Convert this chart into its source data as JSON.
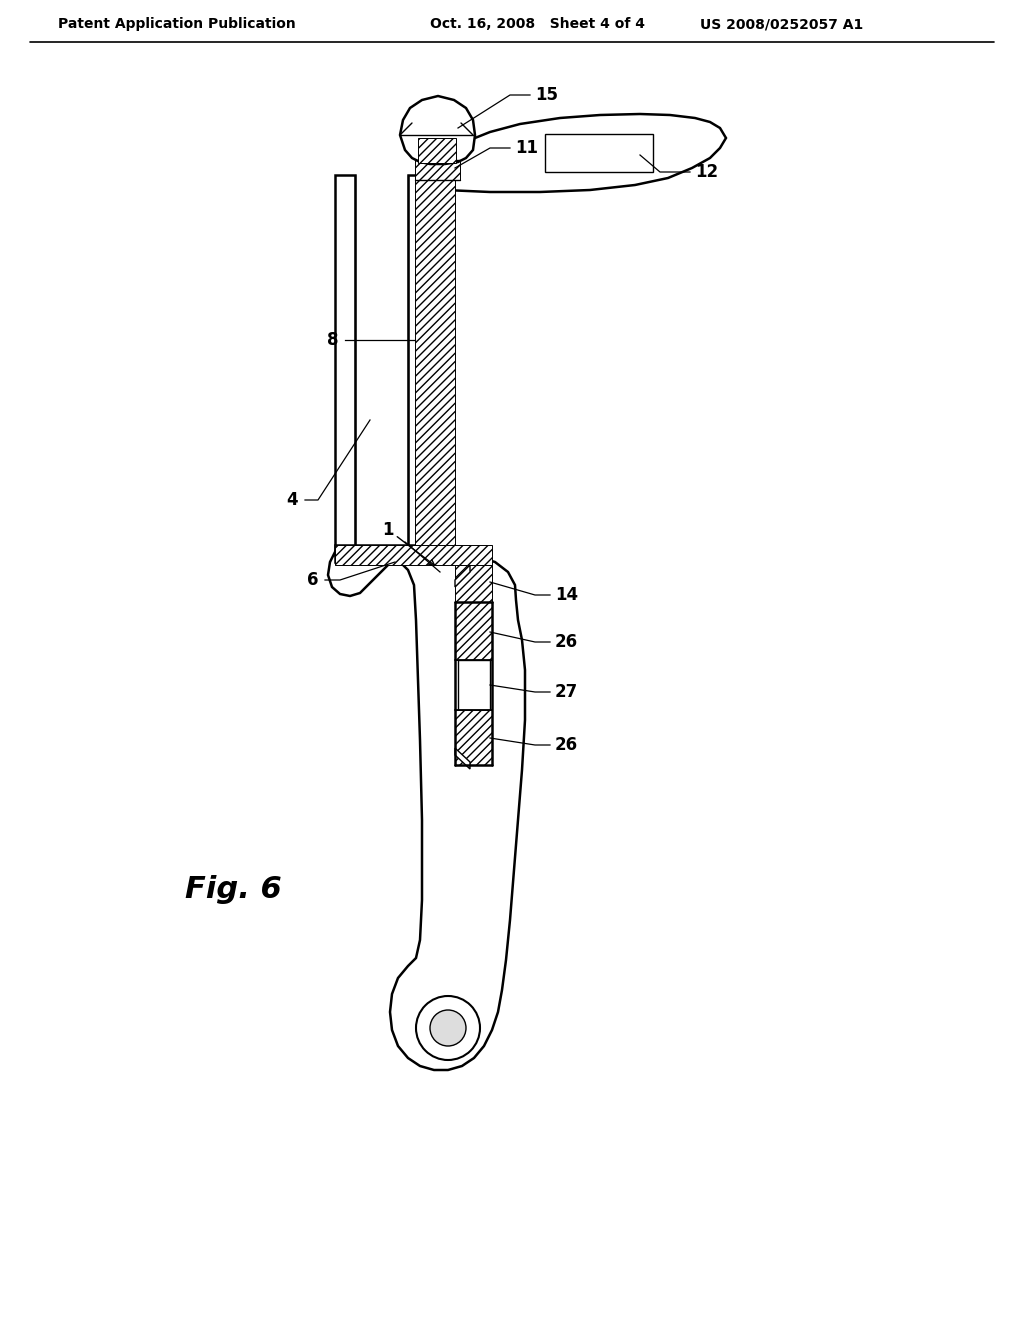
{
  "title_left": "Patent Application Publication",
  "title_center": "Oct. 16, 2008   Sheet 4 of 4",
  "title_right": "US 2008/0252057 A1",
  "fig_label": "Fig. 6",
  "bg": "#ffffff",
  "lc": "#000000"
}
